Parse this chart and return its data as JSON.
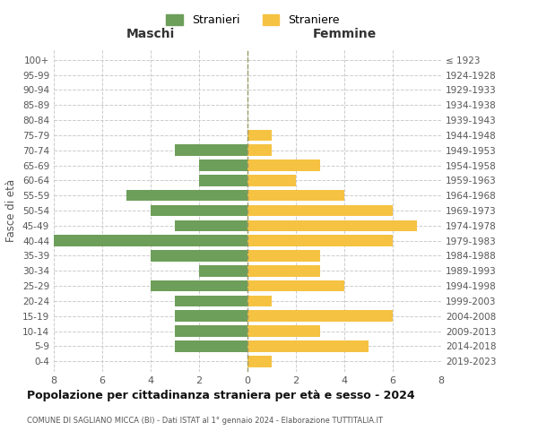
{
  "age_groups": [
    "0-4",
    "5-9",
    "10-14",
    "15-19",
    "20-24",
    "25-29",
    "30-34",
    "35-39",
    "40-44",
    "45-49",
    "50-54",
    "55-59",
    "60-64",
    "65-69",
    "70-74",
    "75-79",
    "80-84",
    "85-89",
    "90-94",
    "95-99",
    "100+"
  ],
  "birth_years": [
    "2019-2023",
    "2014-2018",
    "2009-2013",
    "2004-2008",
    "1999-2003",
    "1994-1998",
    "1989-1993",
    "1984-1988",
    "1979-1983",
    "1974-1978",
    "1969-1973",
    "1964-1968",
    "1959-1963",
    "1954-1958",
    "1949-1953",
    "1944-1948",
    "1939-1943",
    "1934-1938",
    "1929-1933",
    "1924-1928",
    "≤ 1923"
  ],
  "males": [
    0,
    3,
    3,
    3,
    3,
    4,
    2,
    4,
    8,
    3,
    4,
    5,
    2,
    2,
    3,
    0,
    0,
    0,
    0,
    0,
    0
  ],
  "females": [
    1,
    5,
    3,
    6,
    1,
    4,
    3,
    3,
    6,
    7,
    6,
    4,
    2,
    3,
    1,
    1,
    0,
    0,
    0,
    0,
    0
  ],
  "male_color": "#6d9e5a",
  "female_color": "#f5c242",
  "background_color": "#ffffff",
  "grid_color": "#cccccc",
  "title": "Popolazione per cittadinanza straniera per età e sesso - 2024",
  "subtitle": "COMUNE DI SAGLIANO MICCA (BI) - Dati ISTAT al 1° gennaio 2024 - Elaborazione TUTTITALIA.IT",
  "xlabel_left": "Maschi",
  "xlabel_right": "Femmine",
  "ylabel_left": "Fasce di età",
  "legend_male": "Stranieri",
  "legend_female": "Straniere",
  "xlim": 8
}
